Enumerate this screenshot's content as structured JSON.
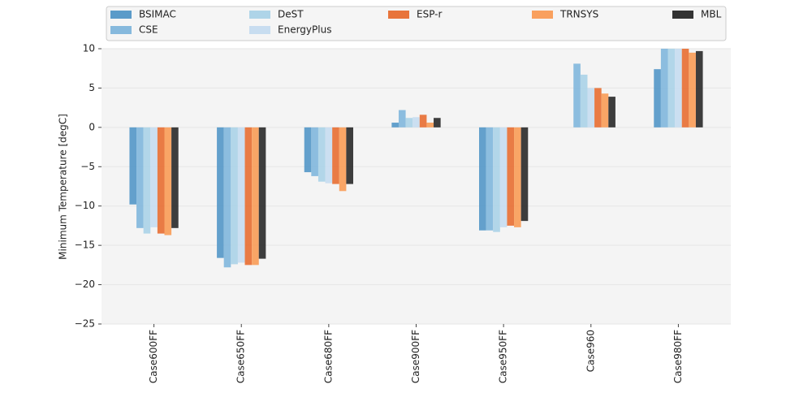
{
  "chart_data": {
    "type": "bar",
    "y_label": "Minimum Temperature [degC]",
    "categories": [
      "Case600FF",
      "Case650FF",
      "Case680FF",
      "Case900FF",
      "Case950FF",
      "Case960",
      "Case980FF"
    ],
    "series": [
      {
        "name": "BSIMAC",
        "color": "#5b9bc9",
        "values": [
          -9.8,
          -16.6,
          -5.7,
          0.6,
          -13.1,
          null,
          7.4
        ]
      },
      {
        "name": "CSE",
        "color": "#86b9dd",
        "values": [
          -12.8,
          -17.8,
          -6.2,
          2.2,
          -13.1,
          8.1,
          10
        ]
      },
      {
        "name": "DeST",
        "color": "#aed4e8",
        "values": [
          -13.5,
          -17.4,
          -6.9,
          1.2,
          -13.3,
          6.7,
          10
        ]
      },
      {
        "name": "EnergyPlus",
        "color": "#c8ddf0",
        "values": [
          -12.7,
          -17.2,
          -7.1,
          1.3,
          -12.7,
          5.0,
          10
        ]
      },
      {
        "name": "ESP-r",
        "color": "#e8743b",
        "values": [
          -13.5,
          -17.5,
          -7.2,
          1.6,
          -12.5,
          5.0,
          10
        ]
      },
      {
        "name": "TRNSYS",
        "color": "#f9a05e",
        "values": [
          -13.7,
          -17.5,
          -8.1,
          0.6,
          -12.7,
          4.3,
          9.5
        ]
      },
      {
        "name": "MBL",
        "color": "#333333",
        "values": [
          -12.8,
          -16.7,
          -7.2,
          1.2,
          -11.9,
          3.9,
          9.7
        ]
      }
    ],
    "ylim": [
      -25,
      10
    ],
    "yticks": [
      {
        "value": -25,
        "label": "−25"
      },
      {
        "value": -20,
        "label": "−20"
      },
      {
        "value": -15,
        "label": "−15"
      },
      {
        "value": -10,
        "label": "−10"
      },
      {
        "value": -5,
        "label": "−5"
      },
      0,
      5,
      10
    ],
    "grid": true
  }
}
